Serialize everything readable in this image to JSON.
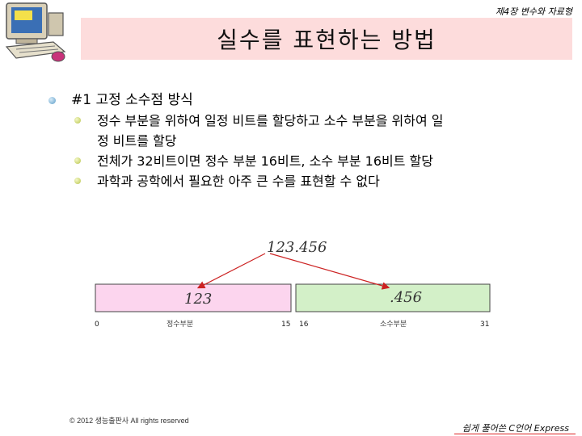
{
  "header": {
    "chapter": "제4장 변수와 자료형"
  },
  "title": "실수를 표현하는 방법",
  "bullets": {
    "main": "#1 고정 소수점 방식",
    "sub1_line1": "정수 부분을 위하여 일정 비트를 할당하고 소수 부분을 위하여 일",
    "sub1_line2": "정 비트를 할당",
    "sub2": "전체가 32비트이면 정수 부분 16비트, 소수 부분 16비트 할당",
    "sub3": "과학과 공학에서 필요한 아주 큰 수를 표현할 수 없다"
  },
  "diagram": {
    "number": "123.456",
    "int_value": "123",
    "frac_value": ".456",
    "bit_start": "0",
    "bit_int_end": "15",
    "bit_frac_start": "16",
    "bit_end": "31",
    "int_caption": "정수부분",
    "frac_caption": "소수부분",
    "colors": {
      "int_box": "#fcd5ee",
      "frac_box": "#d3f0c8",
      "arrow": "#cc2222"
    }
  },
  "footer": {
    "copyright": "© 2012 생능출판사 All rights reserved",
    "book": "쉽게 풀어쓴 C언어 Express"
  }
}
